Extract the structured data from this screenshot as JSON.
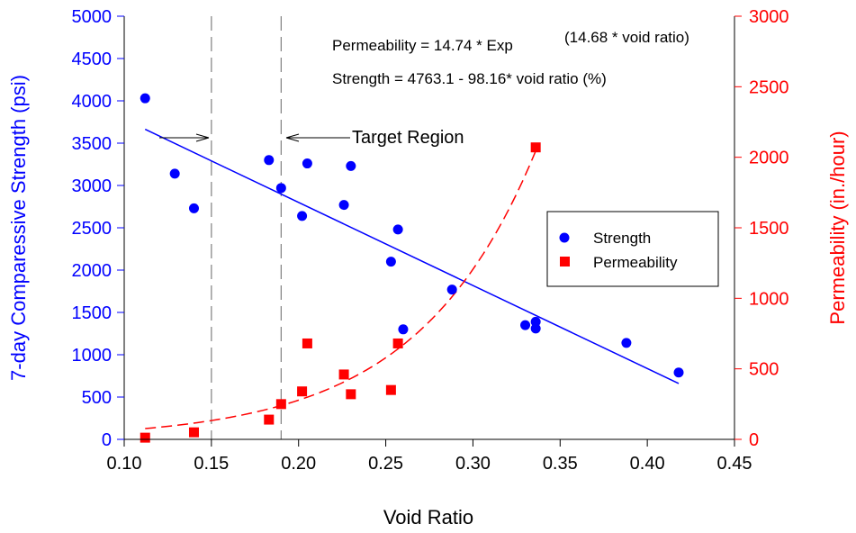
{
  "chart_data": {
    "type": "scatter",
    "title": "",
    "xlabel": "Void Ratio",
    "ylabel_left": "7-day Comparessive Strength (psi)",
    "ylabel_right": "Permeability (in./hour)",
    "xlim": [
      0.1,
      0.45
    ],
    "ylim_left": [
      0,
      5000
    ],
    "ylim_right": [
      0,
      3000
    ],
    "x_ticks": [
      "0.10",
      "0.15",
      "0.20",
      "0.25",
      "0.30",
      "0.35",
      "0.40",
      "0.45"
    ],
    "x_tick_values": [
      0.1,
      0.15,
      0.2,
      0.25,
      0.3,
      0.35,
      0.4,
      0.45
    ],
    "y_left_ticks": [
      "0",
      "500",
      "1000",
      "1500",
      "2000",
      "2500",
      "3000",
      "3500",
      "4000",
      "4500",
      "5000"
    ],
    "y_left_tick_values": [
      0,
      500,
      1000,
      1500,
      2000,
      2500,
      3000,
      3500,
      4000,
      4500,
      5000
    ],
    "y_right_ticks": [
      "0",
      "500",
      "1000",
      "1500",
      "2000",
      "2500",
      "3000"
    ],
    "y_right_tick_values": [
      0,
      500,
      1000,
      1500,
      2000,
      2500,
      3000
    ],
    "grid": false,
    "legend_position": "right-middle",
    "colors": {
      "strength": "#0000ff",
      "permeability": "#ff0000",
      "target_lines": "#808080",
      "axes": "#000000"
    },
    "series": [
      {
        "name": "Strength",
        "axis": "left",
        "marker": "circle",
        "points": [
          [
            0.112,
            4030
          ],
          [
            0.129,
            3140
          ],
          [
            0.14,
            2730
          ],
          [
            0.183,
            3300
          ],
          [
            0.19,
            2970
          ],
          [
            0.202,
            2640
          ],
          [
            0.205,
            3260
          ],
          [
            0.226,
            2770
          ],
          [
            0.23,
            3230
          ],
          [
            0.253,
            2100
          ],
          [
            0.257,
            2480
          ],
          [
            0.26,
            1300
          ],
          [
            0.288,
            1770
          ],
          [
            0.33,
            1350
          ],
          [
            0.336,
            1390
          ],
          [
            0.336,
            1310
          ],
          [
            0.388,
            1140
          ],
          [
            0.418,
            790
          ]
        ]
      },
      {
        "name": "Permeability",
        "axis": "right",
        "marker": "square",
        "points": [
          [
            0.112,
            12
          ],
          [
            0.14,
            50
          ],
          [
            0.183,
            140
          ],
          [
            0.19,
            250
          ],
          [
            0.202,
            340
          ],
          [
            0.205,
            680
          ],
          [
            0.226,
            460
          ],
          [
            0.23,
            320
          ],
          [
            0.253,
            350
          ],
          [
            0.257,
            680
          ],
          [
            0.336,
            2070
          ]
        ]
      }
    ],
    "fits": [
      {
        "series": "Strength",
        "kind": "linear",
        "equation_text": "Strength = 4763.1 - 98.16* void ratio (%)",
        "x_range": [
          0.112,
          0.418
        ],
        "intercept": 4763.1,
        "slope_per_percent": -98.16
      },
      {
        "series": "Permeability",
        "kind": "exponential",
        "equation_text_main": "Permeability = 14.74 * Exp",
        "equation_text_sup": "(14.68 * void ratio)",
        "x_range": [
          0.112,
          0.336
        ],
        "coef": 14.74,
        "rate": 14.68
      }
    ],
    "target_region": {
      "label": "Target Region",
      "x_bounds": [
        0.15,
        0.19
      ]
    },
    "legend": [
      "Strength",
      "Permeability"
    ]
  }
}
